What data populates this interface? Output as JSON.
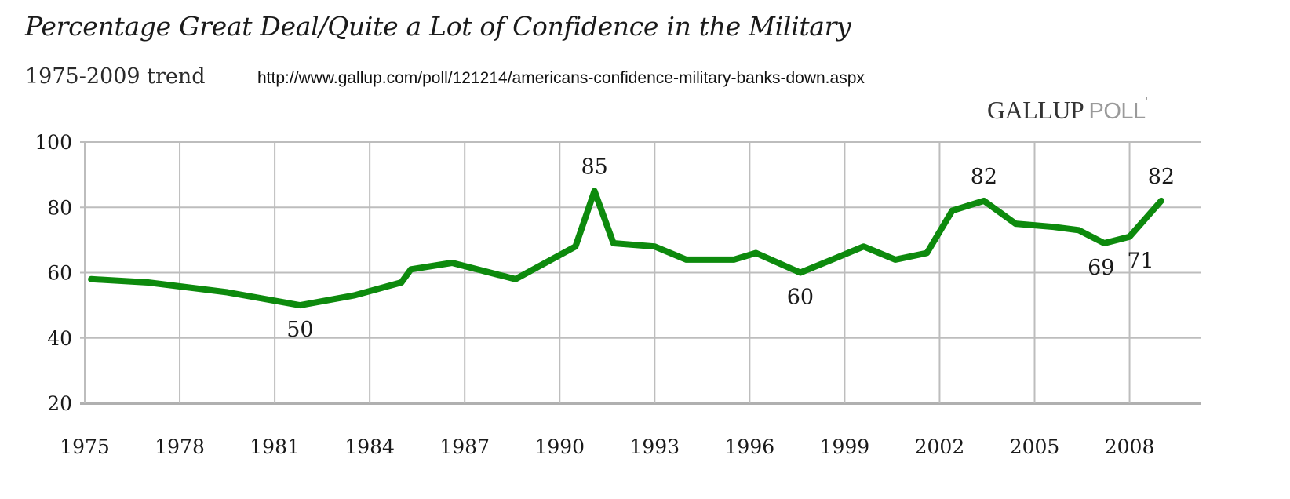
{
  "header": {
    "title": "Percentage Great Deal/Quite a Lot of Confidence in the Military",
    "subtitle": "1975-2009 trend",
    "source_url": "http://www.gallup.com/poll/121214/americans-confidence-military-banks-down.aspx",
    "brand_primary": "GALLUP",
    "brand_secondary": "POLL",
    "brand_mark": "'"
  },
  "colors": {
    "line": "#0d8a0d",
    "grid": "#bdbdbd",
    "axis": "#b0b0b0"
  },
  "chart_data": {
    "type": "line",
    "title": "Percentage Great Deal/Quite a Lot of Confidence in the Military",
    "subtitle": "1975-2009 trend",
    "xlabel": "",
    "ylabel": "",
    "xlim": [
      1975,
      2010.2
    ],
    "ylim": [
      20,
      100
    ],
    "grid": true,
    "legend": "none",
    "x_ticks": [
      1975,
      1978,
      1981,
      1984,
      1987,
      1990,
      1993,
      1996,
      1999,
      2002,
      2005,
      2008
    ],
    "x_tick_labels": [
      "1975",
      "1978",
      "1981",
      "1984",
      "1987",
      "1990",
      "1993",
      "1996",
      "1999",
      "2002",
      "2005",
      "2008"
    ],
    "y_ticks": [
      20,
      40,
      60,
      80,
      100
    ],
    "y_tick_labels": [
      "20",
      "40",
      "60",
      "80",
      "100"
    ],
    "series": [
      {
        "name": "Great deal/Quite a lot of confidence (%)",
        "x": [
          1975.2,
          1977,
          1979.5,
          1981.8,
          1983.5,
          1985,
          1985.3,
          1986.6,
          1988.6,
          1990.5,
          1991.1,
          1991.7,
          1993,
          1994,
          1995.5,
          1996.2,
          1997.6,
          1998.6,
          1999.6,
          2000.6,
          2001.6,
          2002.4,
          2003.4,
          2004.4,
          2005.6,
          2006.4,
          2007.2,
          2008,
          2009
        ],
        "values": [
          58,
          57,
          54,
          50,
          53,
          57,
          61,
          63,
          58,
          68,
          85,
          69,
          68,
          64,
          64,
          66,
          60,
          64,
          68,
          64,
          66,
          79,
          82,
          75,
          74,
          73,
          69,
          71,
          82
        ]
      }
    ],
    "annotations": [
      {
        "text": "50",
        "x": 1981.8,
        "y": 50,
        "position": "below"
      },
      {
        "text": "85",
        "x": 1991.1,
        "y": 85,
        "position": "above"
      },
      {
        "text": "60",
        "x": 1997.6,
        "y": 60,
        "position": "below"
      },
      {
        "text": "82",
        "x": 2003.4,
        "y": 82,
        "position": "above"
      },
      {
        "text": "69",
        "x": 2007.2,
        "y": 69,
        "position": "below"
      },
      {
        "text": "71",
        "x": 2008,
        "y": 71,
        "position": "below"
      },
      {
        "text": "82",
        "x": 2009,
        "y": 82,
        "position": "above"
      }
    ]
  }
}
